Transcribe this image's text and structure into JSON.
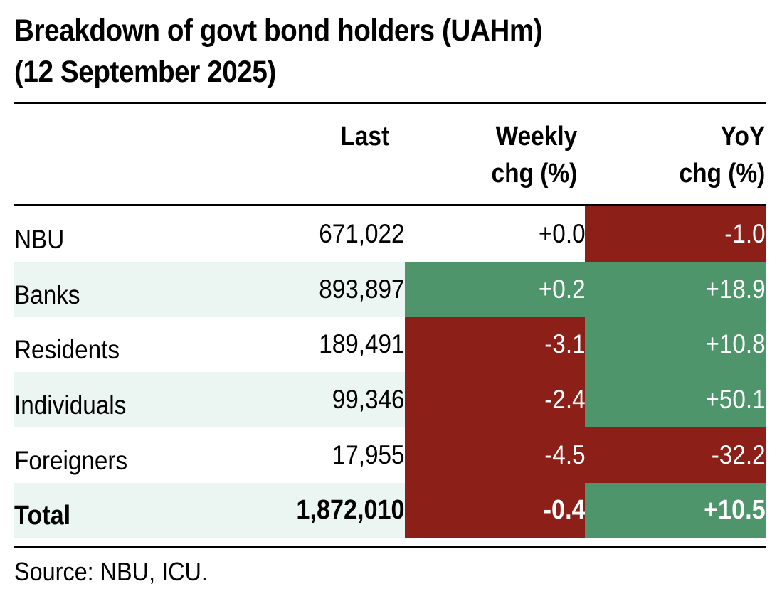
{
  "chart_data": {
    "type": "table",
    "title": "Breakdown of govt bond holders (UAHm) (12 September 2025)",
    "title_lines": [
      "Breakdown of govt bond holders (UAHm)",
      "(12 September 2025)"
    ],
    "columns": [
      {
        "key": "name",
        "label": ""
      },
      {
        "key": "last",
        "label": "Last",
        "label_lines": [
          "Last"
        ]
      },
      {
        "key": "weekly",
        "label": "Weekly chg (%)",
        "label_lines": [
          "Weekly",
          "chg (%)"
        ]
      },
      {
        "key": "yoy",
        "label": "YoY chg (%)",
        "label_lines": [
          "YoY",
          "chg (%)"
        ]
      }
    ],
    "rows": [
      {
        "name": "NBU",
        "last": "671,022",
        "weekly": "+0.0",
        "yoy": "-1.0",
        "weekly_color": "none",
        "yoy_color": "red",
        "shaded": false,
        "bold": false
      },
      {
        "name": "Banks",
        "last": "893,897",
        "weekly": "+0.2",
        "yoy": "+18.9",
        "weekly_color": "green",
        "yoy_color": "green",
        "shaded": true,
        "bold": false
      },
      {
        "name": "Residents",
        "last": "189,491",
        "weekly": "-3.1",
        "yoy": "+10.8",
        "weekly_color": "red",
        "yoy_color": "green",
        "shaded": false,
        "bold": false
      },
      {
        "name": "Individuals",
        "last": "99,346",
        "weekly": "-2.4",
        "yoy": "+50.1",
        "weekly_color": "red",
        "yoy_color": "green",
        "shaded": true,
        "bold": false
      },
      {
        "name": "Foreigners",
        "last": "17,955",
        "weekly": "-4.5",
        "yoy": "-32.2",
        "weekly_color": "red",
        "yoy_color": "red",
        "shaded": false,
        "bold": false
      },
      {
        "name": "Total",
        "last": "1,872,010",
        "weekly": "-0.4",
        "yoy": "+10.5",
        "weekly_color": "red",
        "yoy_color": "green",
        "shaded": true,
        "bold": true
      }
    ],
    "source": "Source: NBU, ICU."
  },
  "colors": {
    "positive": "#4e956b",
    "negative": "#8c2018",
    "row_shade": "#ebf5f2",
    "rule": "#000000"
  }
}
